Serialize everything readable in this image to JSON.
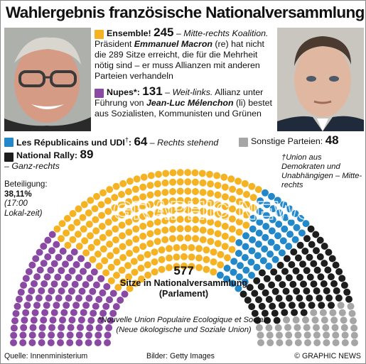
{
  "title": "Wahlergebnis französische Nationalversammlung",
  "legend": {
    "ensemble": {
      "name": "Ensemble!",
      "seats": "245",
      "dash": " – ",
      "tag": "Mitte-rechts",
      "desc1": "Koalition.",
      "desc2": " Präsident ",
      "person": "Emmanuel Macron",
      "desc3": " (re) hat nicht die 289 Sitze erreicht, die für die Mehrheit nötig sind – er muss Allianzen mit anderen Parteien verhandeln"
    },
    "nupes": {
      "name": "Nupes*:",
      "seats": "131",
      "dash": " – ",
      "tag": "Weit-links.",
      "desc1": " Allianz unter Führung von ",
      "person": "Jean-Luc Mélenchon",
      "desc2": " (li) bestet aus Sozialisten, Kommunisten und Grünen"
    },
    "lr": {
      "name": "Les Républicains und UDI",
      "mark": "†",
      "sep": ": ",
      "seats": "64",
      "dash": " – ",
      "tag": "Rechts stehend"
    },
    "sonstige": {
      "name": "Sonstige Parteien:",
      "seats": "48"
    },
    "rn": {
      "name": "National Rally:",
      "seats": "89",
      "tag": "– Ganz-rechts"
    }
  },
  "udi_note": "†Union aus Demokraten und Unabhängigen – Mitte-rechts",
  "turnout": {
    "label": "Beteiligung:",
    "value": "38,11%",
    "note": "(17:00 Lokal-zeit)"
  },
  "center": {
    "total": "577",
    "label": "Sitze in Nationalversammlung (Parlament)"
  },
  "nupes_note": "*Nouvelle Union Populaire Ecologique et Sociale (Neue ökologische und Soziale Union)",
  "footer": {
    "source": "Quelle: Innenministerium",
    "images": "Bilder: Getty Images",
    "brand": "© GRAPHIC NEWS"
  },
  "watermark": "GRAPHIC NEWS",
  "chart_data": {
    "type": "parliament",
    "total": 577,
    "majority": 289,
    "series": [
      {
        "name": "Nupes",
        "value": 131,
        "color": "#8a4aa3"
      },
      {
        "name": "Ensemble!",
        "value": 245,
        "color": "#f5b324"
      },
      {
        "name": "Les Républicains und UDI",
        "value": 64,
        "color": "#2288c9"
      },
      {
        "name": "National Rally",
        "value": 89,
        "color": "#1d1d1d"
      },
      {
        "name": "Sonstige Parteien",
        "value": 48,
        "color": "#a6a6a6"
      }
    ]
  },
  "colors": {
    "ensemble": "#f5b324",
    "nupes": "#8a4aa3",
    "lr": "#2288c9",
    "rn": "#1d1d1d",
    "sonstige": "#a6a6a6"
  },
  "icons": {
    "left_photo": "portrait-melenchon",
    "right_photo": "portrait-macron"
  }
}
